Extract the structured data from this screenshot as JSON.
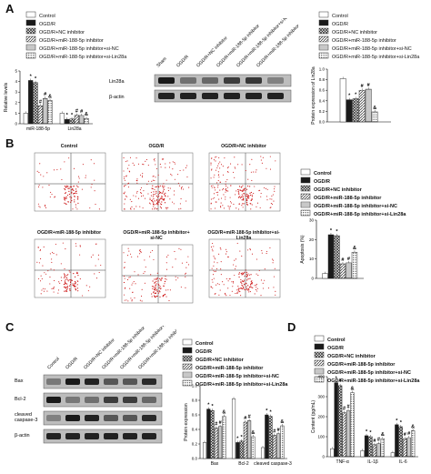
{
  "panel_labels": {
    "a": "A",
    "b": "B",
    "c": "C",
    "d": "D"
  },
  "legend_groups": [
    "Control",
    "OGD/R",
    "OGD/R+NC inhibitor",
    "OGD/R+miR-188-5p inhibitor",
    "OGD/R+miR-188-5p inhibitor+si-NC",
    "OGD/R+miR-188-5p inhibitor+si-Lin28a"
  ],
  "colors": {
    "bar_dark": "#222222",
    "bar_mid": "#888888",
    "bar_light": "#dddddd",
    "scatter": "#cc1111"
  },
  "panel_a": {
    "lanes": [
      "Sham",
      "OGD/R",
      "OGD/R+NC inhibitor",
      "OGD/R+miR-188-5p inhibitor",
      "OGD/R+miR-188-5p inhibitor+si-NC",
      "OGD/R+miR-188-5p inhibitor+si-Lin28a"
    ],
    "blots": [
      "Lin28a",
      "β-actin"
    ]
  },
  "panel_b": {
    "flow_titles": [
      "Control",
      "OGD/R",
      "OGD/R+NC inhibitor",
      "OGD/R+miR-188-5p inhibitor",
      "OGD/R+miR-188-5p inhibitor+\nsi-NC",
      "OGD/R+miR-188-5p inhibitor+si-Lin28a"
    ]
  },
  "panel_c": {
    "lanes": [
      "Control",
      "OGD/R",
      "OGD/R+NC inhibitor",
      "OGD/R+miR-188-5p inhibitor",
      "OGD/R+miR-188-5p inhibitor+si-NC",
      "OGD/R+miR-188-5p inhibitor+si-Lin28a"
    ],
    "blots": [
      "Bax",
      "Bcl-2",
      "cleaved\ncaspase-3",
      "β-actin"
    ]
  },
  "chart_data": [
    {
      "type": "bar",
      "panel": "A",
      "ylabel": "Relative levels",
      "categories": [
        "miR-188-5p",
        "Lin28a"
      ],
      "ylim": [
        0,
        5
      ],
      "yticks": [
        0,
        1,
        2,
        3,
        4,
        5
      ],
      "series": [
        {
          "name": "Control",
          "values": [
            1.0,
            1.0
          ]
        },
        {
          "name": "OGD/R",
          "values": [
            4.1,
            0.42
          ]
        },
        {
          "name": "OGD/R+NC inhibitor",
          "values": [
            3.9,
            0.45
          ]
        },
        {
          "name": "OGD/R+miR-188-5p inhibitor",
          "values": [
            1.7,
            0.8
          ]
        },
        {
          "name": "OGD/R+miR-188-5p inhibitor+si-NC",
          "values": [
            2.4,
            0.78
          ]
        },
        {
          "name": "OGD/R+miR-188-5p inhibitor+si-Lin28a",
          "values": [
            2.2,
            0.5
          ]
        }
      ],
      "annotations": [
        [
          "",
          "*",
          "*",
          "#",
          "#",
          "&"
        ],
        [
          "",
          "*",
          "*",
          "#",
          "#",
          "&"
        ]
      ]
    },
    {
      "type": "bar",
      "panel": "A",
      "ylabel": "Protein expression of Lin28a",
      "categories": [
        ""
      ],
      "ylim": [
        0,
        1.0
      ],
      "yticks": [
        0.0,
        0.2,
        0.4,
        0.6,
        0.8,
        1.0
      ],
      "series": [
        {
          "name": "Control",
          "values": [
            0.82
          ]
        },
        {
          "name": "OGD/R",
          "values": [
            0.42
          ]
        },
        {
          "name": "OGD/R+NC inhibitor",
          "values": [
            0.44
          ]
        },
        {
          "name": "OGD/R+miR-188-5p inhibitor",
          "values": [
            0.6
          ]
        },
        {
          "name": "OGD/R+miR-188-5p inhibitor+si-NC",
          "values": [
            0.62
          ]
        },
        {
          "name": "OGD/R+miR-188-5p inhibitor+si-Lin28a",
          "values": [
            0.19
          ]
        }
      ],
      "annotations": [
        [
          "",
          "*",
          "*",
          "#",
          "#",
          "&"
        ]
      ]
    },
    {
      "type": "bar",
      "panel": "B",
      "ylabel": "Apoptosis (%)",
      "categories": [
        ""
      ],
      "ylim": [
        0,
        30
      ],
      "yticks": [
        0,
        10,
        20,
        30
      ],
      "series": [
        {
          "name": "Control",
          "values": [
            2.5
          ]
        },
        {
          "name": "OGD/R",
          "values": [
            22.5
          ]
        },
        {
          "name": "OGD/R+NC inhibitor",
          "values": [
            22.0
          ]
        },
        {
          "name": "OGD/R+miR-188-5p inhibitor",
          "values": [
            7.5
          ]
        },
        {
          "name": "OGD/R+miR-188-5p inhibitor+si-NC",
          "values": [
            8.0
          ]
        },
        {
          "name": "OGD/R+miR-188-5p inhibitor+si-Lin28a",
          "values": [
            13.5
          ]
        }
      ],
      "annotations": [
        [
          "",
          "*",
          "*",
          "#",
          "#",
          "&"
        ]
      ]
    },
    {
      "type": "bar",
      "panel": "C",
      "ylabel": "Protein expression",
      "categories": [
        "Bax",
        "Bcl-2",
        "cleaved caspase-3"
      ],
      "ylim": [
        0,
        1.0
      ],
      "yticks": [
        0.0,
        0.2,
        0.4,
        0.6,
        0.8,
        1.0
      ],
      "series": [
        {
          "name": "Control",
          "values": [
            0.22,
            0.82,
            0.15
          ]
        },
        {
          "name": "OGD/R",
          "values": [
            0.68,
            0.22,
            0.6
          ]
        },
        {
          "name": "OGD/R+NC inhibitor",
          "values": [
            0.66,
            0.24,
            0.58
          ]
        },
        {
          "name": "OGD/R+miR-188-5p inhibitor",
          "values": [
            0.42,
            0.5,
            0.32
          ]
        },
        {
          "name": "OGD/R+miR-188-5p inhibitor+si-NC",
          "values": [
            0.44,
            0.52,
            0.34
          ]
        },
        {
          "name": "OGD/R+miR-188-5p inhibitor+si-Lin28a",
          "values": [
            0.58,
            0.3,
            0.45
          ]
        }
      ],
      "annotations": [
        [
          "",
          "*",
          "*",
          "#",
          "#",
          "&"
        ],
        [
          "",
          "*",
          "*",
          "#",
          "#",
          "&"
        ],
        [
          "",
          "*",
          "*",
          "#",
          "#",
          "&"
        ]
      ]
    },
    {
      "type": "bar",
      "panel": "D",
      "ylabel": "Content (pg/mL)",
      "categories": [
        "TNF-α",
        "IL-1β",
        "IL-6"
      ],
      "ylim": [
        0,
        400
      ],
      "yticks": [
        0,
        100,
        200,
        300,
        400
      ],
      "series": [
        {
          "name": "Control",
          "values": [
            40,
            30,
            20
          ]
        },
        {
          "name": "OGD/R",
          "values": [
            370,
            105,
            160
          ]
        },
        {
          "name": "OGD/R+NC inhibitor",
          "values": [
            355,
            100,
            150
          ]
        },
        {
          "name": "OGD/R+miR-188-5p inhibitor",
          "values": [
            220,
            60,
            90
          ]
        },
        {
          "name": "OGD/R+miR-188-5p inhibitor+si-NC",
          "values": [
            230,
            65,
            95
          ]
        },
        {
          "name": "OGD/R+miR-188-5p inhibitor+si-Lin28a",
          "values": [
            320,
            90,
            130
          ]
        }
      ],
      "annotations": [
        [
          "",
          "*",
          "*",
          "#",
          "#",
          "&"
        ],
        [
          "",
          "*",
          "*",
          "#",
          "#",
          "&"
        ],
        [
          "",
          "*",
          "*",
          "#",
          "#",
          "&"
        ]
      ]
    }
  ]
}
